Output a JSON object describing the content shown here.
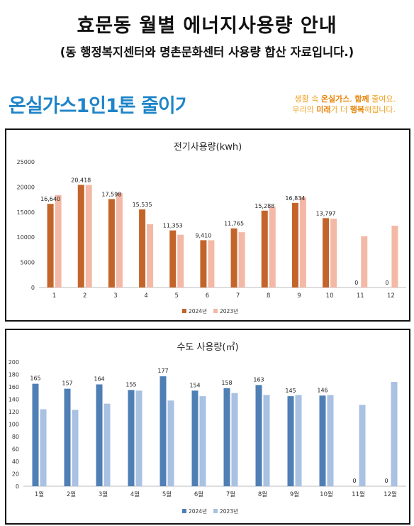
{
  "header": {
    "title": "효문동 월별 에너지사용량 안내",
    "subtitle": "(동 행정복지센터와 명촌문화센터 사용량 합산 자료입니다.)"
  },
  "campaign": {
    "logo_text": "온실가스1인1톤 줄이기",
    "slogan_line1_a": "생활 속 ",
    "slogan_line1_b": "온실가스",
    "slogan_line1_c": ", ",
    "slogan_line1_d": "함께",
    "slogan_line1_e": " 줄여요.",
    "slogan_line2_a": "우리의 ",
    "slogan_line2_b": "미래",
    "slogan_line2_c": "가 더 ",
    "slogan_line2_d": "행복",
    "slogan_line2_e": "해집니다."
  },
  "colors": {
    "electric_2024": "#c3652a",
    "electric_2023": "#f4b9a6",
    "water_2024": "#4f7fb5",
    "water_2023": "#a9c1e2",
    "brand_blue": "#1f84c8",
    "slogan_orange": "#f0a020"
  },
  "chart_data": [
    {
      "type": "bar",
      "title": "전기사용량(kwh)",
      "categories": [
        "1",
        "2",
        "3",
        "4",
        "5",
        "6",
        "7",
        "8",
        "9",
        "10",
        "11",
        "12"
      ],
      "ylim": [
        0,
        25000
      ],
      "yticks": [
        "0",
        "5000",
        "10000",
        "15000",
        "20000",
        "25000"
      ],
      "legend_position": "bottom",
      "grid": false,
      "series": [
        {
          "name": "2024년",
          "values": [
            16640,
            20418,
            17598,
            15535,
            11353,
            9410,
            11765,
            15288,
            16834,
            13797,
            0,
            0
          ],
          "labels": [
            "16,640",
            "20,418",
            "17,598",
            "15,535",
            "11,353",
            "9,410",
            "11,765",
            "15,288",
            "16,834",
            "13,797",
            "0",
            "0"
          ]
        },
        {
          "name": "2023년",
          "values": [
            18400,
            20400,
            18800,
            12600,
            10500,
            9400,
            11000,
            16000,
            18000,
            13700,
            10200,
            12300
          ]
        }
      ]
    },
    {
      "type": "bar",
      "title": "수도 사용량(㎥)",
      "categories": [
        "1월",
        "2월",
        "3월",
        "4월",
        "5월",
        "6월",
        "7월",
        "8월",
        "9월",
        "10월",
        "11월",
        "12월"
      ],
      "ylim": [
        0,
        200
      ],
      "yticks": [
        "0",
        "20",
        "40",
        "60",
        "80",
        "100",
        "120",
        "140",
        "160",
        "180",
        "200"
      ],
      "legend_position": "bottom",
      "grid": false,
      "series": [
        {
          "name": "2024년",
          "values": [
            165,
            157,
            164,
            155,
            177,
            154,
            158,
            163,
            145,
            146,
            0,
            0
          ],
          "labels": [
            "165",
            "157",
            "164",
            "155",
            "177",
            "154",
            "158",
            "163",
            "145",
            "146",
            "0",
            "0"
          ]
        },
        {
          "name": "2023년",
          "values": [
            124,
            123,
            133,
            154,
            138,
            145,
            150,
            147,
            147,
            147,
            131,
            168
          ]
        }
      ]
    }
  ]
}
